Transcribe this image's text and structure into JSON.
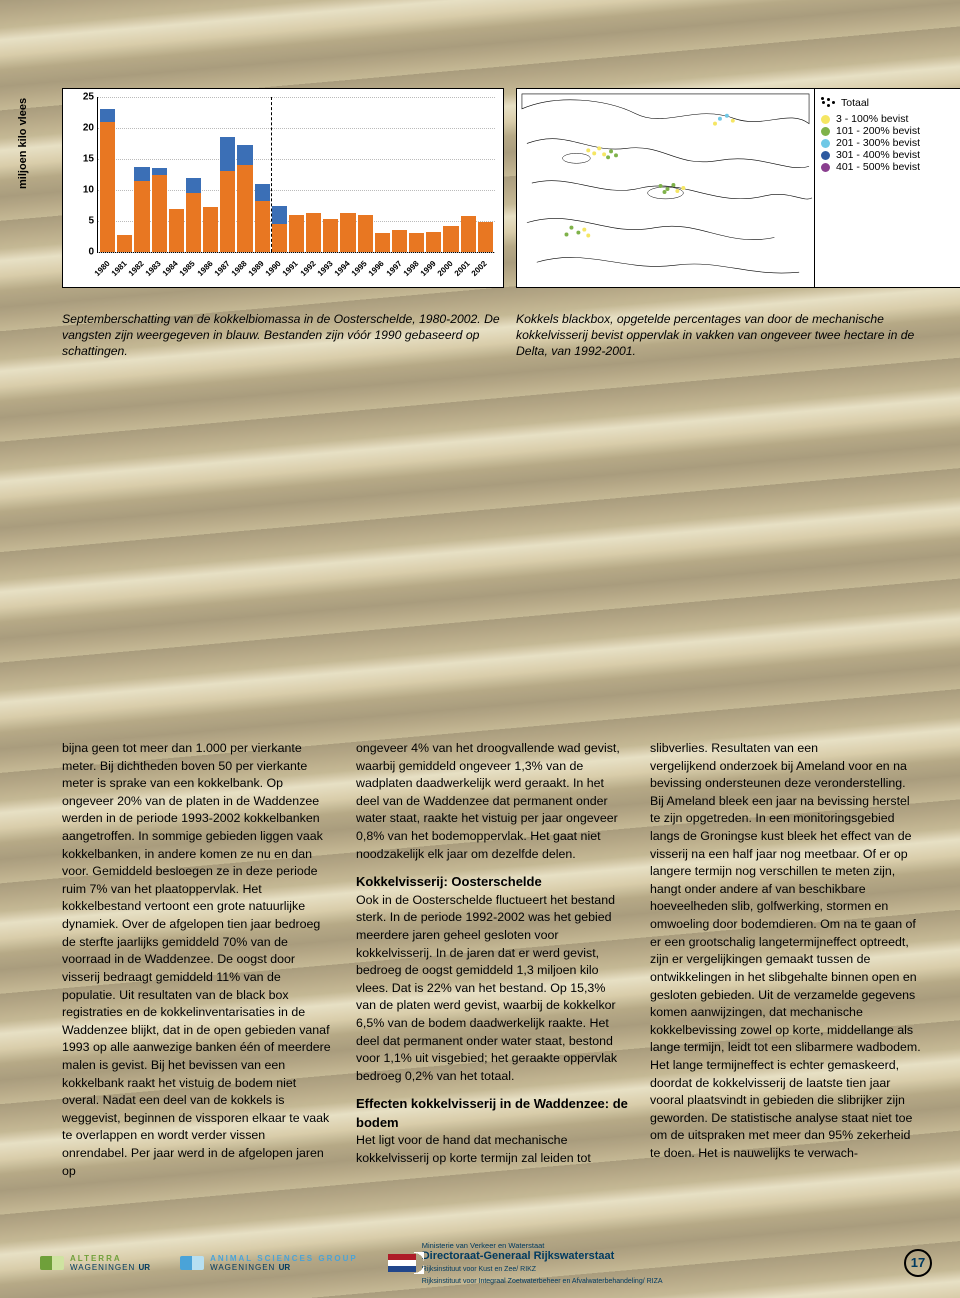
{
  "chart": {
    "type": "stacked-bar",
    "ylabel": "miljoen kilo vlees",
    "ylim": [
      0,
      25
    ],
    "ytick_step": 5,
    "yticks": [
      0,
      5,
      10,
      15,
      20,
      25
    ],
    "background_color": "#ffffff",
    "grid_color": "#bbbbbb",
    "bar_colors": {
      "orange": "#e87722",
      "blue": "#3b6fb6"
    },
    "split_after_index": 9,
    "years": [
      "1980",
      "1981",
      "1982",
      "1983",
      "1984",
      "1985",
      "1986",
      "1987",
      "1988",
      "1989",
      "1990",
      "1991",
      "1992",
      "1993",
      "1994",
      "1995",
      "1996",
      "1997",
      "1998",
      "1999",
      "2000",
      "2001",
      "2002"
    ],
    "orange_values": [
      21,
      2.8,
      11.5,
      12.5,
      7,
      9.5,
      7.2,
      13,
      14,
      8.2,
      4.5,
      6,
      6.3,
      5.4,
      6.3,
      6,
      3,
      3.5,
      3,
      3.2,
      4.2,
      5.8,
      4.8
    ],
    "blue_values": [
      2,
      0,
      2.2,
      1,
      0,
      2.5,
      0,
      5.5,
      3.3,
      2.8,
      3,
      0,
      0,
      0,
      0,
      0,
      0,
      0,
      0,
      0,
      0,
      0,
      0
    ]
  },
  "chart_caption": "Septemberschatting van de kokkelbiomassa in de Oosterschelde, 1980-2002. De vangsten zijn weergegeven in blauw. Bestanden zijn vóór 1990 gebaseerd op schattingen.",
  "map": {
    "type": "map",
    "caption": "Kokkels blackbox, opgetelde percentages van door de mechanische kokkelvisserij bevist oppervlak in vakken van ongeveer twee hectare in de Delta, van 1992-2001.",
    "legend_title": "Totaal",
    "legend": [
      {
        "label": "3 - 100% bevist",
        "color": "#f5e663"
      },
      {
        "label": "101 - 200% bevist",
        "color": "#7fb24a"
      },
      {
        "label": "201 - 300% bevist",
        "color": "#6fc8e6"
      },
      {
        "label": "301 - 400% bevist",
        "color": "#2e5aa0"
      },
      {
        "label": "401 - 500% bevist",
        "color": "#8a3f8f"
      }
    ],
    "outline_color": "#000000",
    "land_fill": "#ffffff"
  },
  "article": {
    "col1": "bijna geen tot meer dan 1.000 per vierkante meter. Bij dichtheden boven 50 per vierkante meter is sprake van een kokkelbank. Op ongeveer 20% van de platen in de Waddenzee werden in de periode 1993-2002 kokkelbanken aangetroffen. In sommige gebieden liggen vaak kokkelbanken, in andere komen ze nu en dan voor. Gemiddeld besloegen ze in deze periode ruim 7% van het plaatoppervlak.\nHet kokkelbestand vertoont een grote natuurlijke dynamiek. Over de afgelopen tien jaar bedroeg de sterfte jaarlijks gemiddeld 70% van de voorraad in de Waddenzee. De oogst door visserij bedraagt gemiddeld 11% van de populatie.\nUit resultaten van de black box registraties en de kokkelinventarisaties in de Waddenzee blijkt, dat in de open gebieden vanaf 1993 op alle aanwezige banken één of meerdere malen is gevist. Bij het bevissen van een kokkelbank raakt het vistuig de bodem niet overal. Nadat een deel van de kokkels is weggevist, beginnen de vissporen elkaar te vaak te overlappen en wordt verder vissen onrendabel.\nPer jaar werd in de afgelopen jaren op",
    "col2a": "ongeveer 4% van het droogvallende wad gevist, waarbij gemiddeld ongeveer 1,3% van de wadplaten daadwerkelijk werd geraakt. In het deel van de Waddenzee dat permanent onder water staat, raakte het vistuig per jaar ongeveer 0,8% van het bodemoppervlak. Het gaat niet noodzakelijk elk jaar om dezelfde delen.",
    "h2a": "Kokkelvisserij: Oosterschelde",
    "col2b": "Ook in de Oosterschelde fluctueert het bestand sterk. In de periode 1992-2002 was het gebied meerdere jaren geheel gesloten voor kokkelvisserij. In de jaren dat er werd gevist, bedroeg de oogst gemiddeld 1,3 miljoen kilo vlees. Dat is 22% van het bestand. Op 15,3% van de platen werd gevist, waarbij de kokkelkor 6,5% van de bodem daadwerkelijk raakte. Het deel dat permanent onder water staat, bestond voor 1,1% uit visgebied; het geraakte oppervlak bedroeg 0,2% van het totaal.",
    "h2b": "Effecten kokkelvisserij in de Waddenzee: de bodem",
    "col2c": "Het ligt voor de hand dat mechanische kokkelvisserij op korte termijn zal leiden tot slibverlies. Resultaten van een",
    "col3": "vergelijkend onderzoek bij Ameland voor en na bevissing ondersteunen deze veronderstelling. Bij Ameland bleek een jaar na bevissing herstel te zijn opgetreden.\nIn een monitoringsgebied langs de Groningse kust bleek het effect van de visserij na een half jaar nog meetbaar. Of er op langere termijn nog verschillen te meten zijn, hangt onder andere af van beschikbare hoeveelheden slib, golfwerking, stormen en omwoeling door bodemdieren. Om na te gaan of er een grootschalig langetermijneffect optreedt, zijn er vergelijkingen gemaakt tussen de ontwikkelingen in het slibgehalte binnen open en gesloten gebieden.\nUit de verzamelde gegevens komen aanwijzingen, dat mechanische kokkelbevissing zowel op korte, middellange als lange termijn, leidt tot een slibarmere wadbodem. Het lange termijneffect is echter gemaskeerd, doordat de kokkelvisserij de laatste tien jaar vooral plaatsvindt in gebieden die slibrijker zijn geworden. De statistische analyse staat niet toe om de uitspraken met meer dan 95% zekerheid te doen. Het is nauwelijks te verwach-"
  },
  "footer": {
    "alterra": "ALTERRA",
    "wur1": "WAGENINGEN",
    "asg": "ANIMAL SCIENCES GROUP",
    "wur2": "WAGENINGEN",
    "ministry": "Ministerie van Verkeer en Waterstaat",
    "rws": "Directoraat-Generaal Rijkswaterstaat",
    "sub1": "Rijksinstituut voor Kust en Zee/ RIKZ",
    "sub2": "Rijksinstituut voor Integraal Zoetwaterbeheer en Afvalwaterbehandeling/ RIZA",
    "page": "17"
  }
}
